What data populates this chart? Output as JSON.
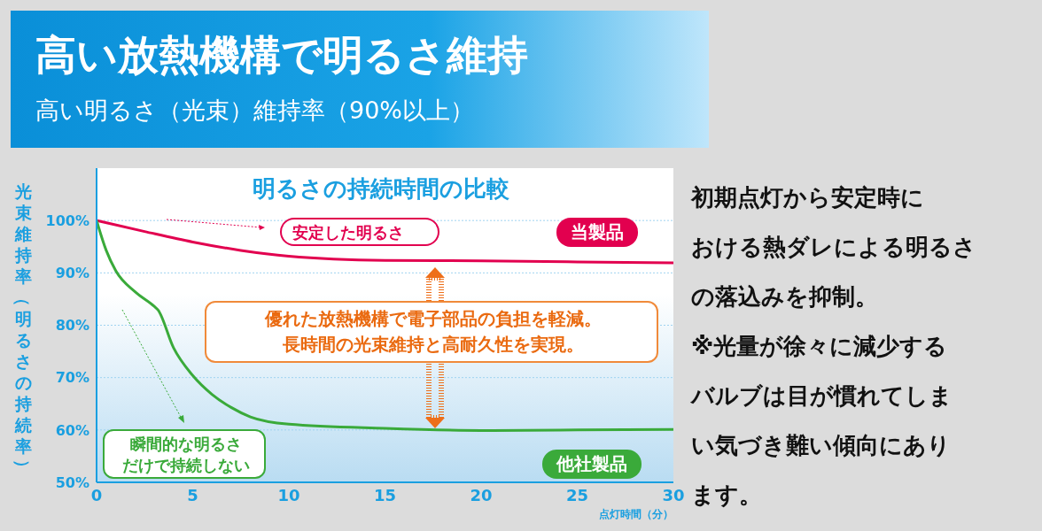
{
  "chart_data": {
    "type": "line",
    "title": "高い放熱機構で明るさ維持",
    "subtitle": "高い明るさ（光束）維持率（90%以上）",
    "xlabel": "点灯時間（分）",
    "ylabel": "光束維持率（明るさの持続率）",
    "annotations": [
      "明るさの持続時間の比較",
      "安定した明るさ",
      "瞬間的な明るさだけで持続しない",
      "優れた放熱機構で電子部品の負担を軽減。長時間の光束維持と高耐久性を実現。",
      "初期点灯から安定時における熱ダレによる明るさの落込みを抑制。※光量が徐々に減少するバルブは目が慣れてしまい気づき難い傾向にあります。"
    ],
    "series": [
      {
        "name": "当製品",
        "color": "#e2004f",
        "x": [
          0,
          2.5,
          5,
          7.5,
          10,
          15,
          20,
          25,
          30
        ],
        "values": [
          100,
          97.9,
          95.9,
          94.3,
          93.2,
          92.4,
          92.3,
          92.1,
          91.9
        ]
      },
      {
        "name": "他社製品",
        "color": "#3aaa3a",
        "x": [
          0,
          0.5,
          1,
          2,
          3,
          3.2,
          4,
          5,
          6,
          7,
          8,
          10,
          15,
          20,
          25,
          30
        ],
        "values": [
          100,
          94.3,
          90.4,
          86.4,
          83.6,
          82.9,
          75.7,
          70.4,
          66.8,
          64.3,
          62.5,
          61.1,
          60.3,
          59.9,
          60,
          60.1
        ]
      }
    ],
    "xlim": [
      0,
      30
    ],
    "ylim": [
      50,
      110
    ],
    "xticks": [
      0,
      5,
      10,
      15,
      20,
      25,
      30
    ],
    "yticks": [
      {
        "value": 50,
        "label": "50%"
      },
      {
        "value": 60,
        "label": "60%"
      },
      {
        "value": 70,
        "label": "70%"
      },
      {
        "value": 80,
        "label": "80%"
      },
      {
        "value": 90,
        "label": "90%"
      },
      {
        "value": 100,
        "label": "100%"
      }
    ],
    "grid": true,
    "marker": "none",
    "line_style": "solid"
  }
}
